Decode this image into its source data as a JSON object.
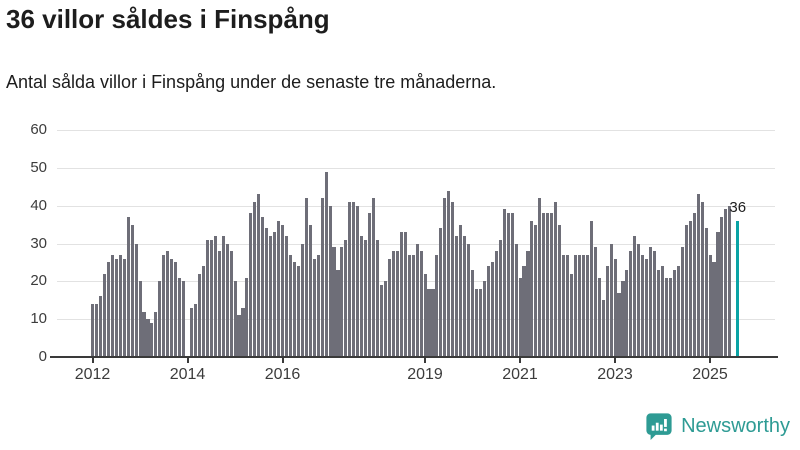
{
  "header": {
    "title": "36 villor såldes i Finspång",
    "subtitle": "Antal sålda villor i Finspång under de senaste tre månaderna."
  },
  "chart_data": {
    "type": "bar",
    "title": "36 villor såldes i Finspång",
    "xlabel": "",
    "ylabel": "",
    "ylim": [
      0,
      60
    ],
    "grid": "horizontal",
    "y_ticks": [
      0,
      10,
      20,
      30,
      40,
      50,
      60
    ],
    "x_tick_years": [
      2012,
      2014,
      2016,
      2019,
      2021,
      2023,
      2025
    ],
    "start_month": "2012-01",
    "months_per_bar": 1,
    "values": [
      14,
      14,
      16,
      22,
      25,
      27,
      26,
      27,
      26,
      37,
      35,
      30,
      20,
      12,
      10,
      9,
      12,
      20,
      27,
      28,
      26,
      25,
      21,
      20,
      0,
      13,
      14,
      22,
      24,
      31,
      31,
      32,
      28,
      32,
      30,
      28,
      20,
      11,
      13,
      21,
      38,
      41,
      43,
      37,
      34,
      32,
      33,
      36,
      35,
      32,
      27,
      25,
      24,
      30,
      42,
      35,
      26,
      27,
      42,
      49,
      40,
      29,
      23,
      29,
      31,
      41,
      41,
      40,
      32,
      31,
      38,
      42,
      31,
      19,
      20,
      26,
      28,
      28,
      33,
      33,
      27,
      27,
      30,
      28,
      22,
      18,
      18,
      27,
      34,
      42,
      44,
      41,
      32,
      35,
      32,
      30,
      23,
      18,
      18,
      20,
      24,
      25,
      28,
      31,
      39,
      38,
      38,
      30,
      21,
      24,
      28,
      36,
      35,
      42,
      38,
      38,
      38,
      41,
      35,
      27,
      27,
      22,
      27,
      27,
      27,
      27,
      36,
      29,
      21,
      15,
      24,
      30,
      26,
      17,
      20,
      23,
      28,
      32,
      30,
      27,
      26,
      29,
      28,
      23,
      24,
      21,
      21,
      23,
      24,
      29,
      35,
      36,
      38,
      43,
      41,
      34,
      27,
      25,
      33,
      37,
      39,
      40,
      null,
      36
    ],
    "bar_color": "#6e6e78",
    "highlight": {
      "index": 163,
      "value": 36,
      "label": "36",
      "color": "#0aa3a5"
    },
    "legend": null
  },
  "footer": {
    "brand": "Newsworthy",
    "brand_color": "#2E9B94",
    "logo_icon": "bar-chart-speech-bubble-icon"
  }
}
